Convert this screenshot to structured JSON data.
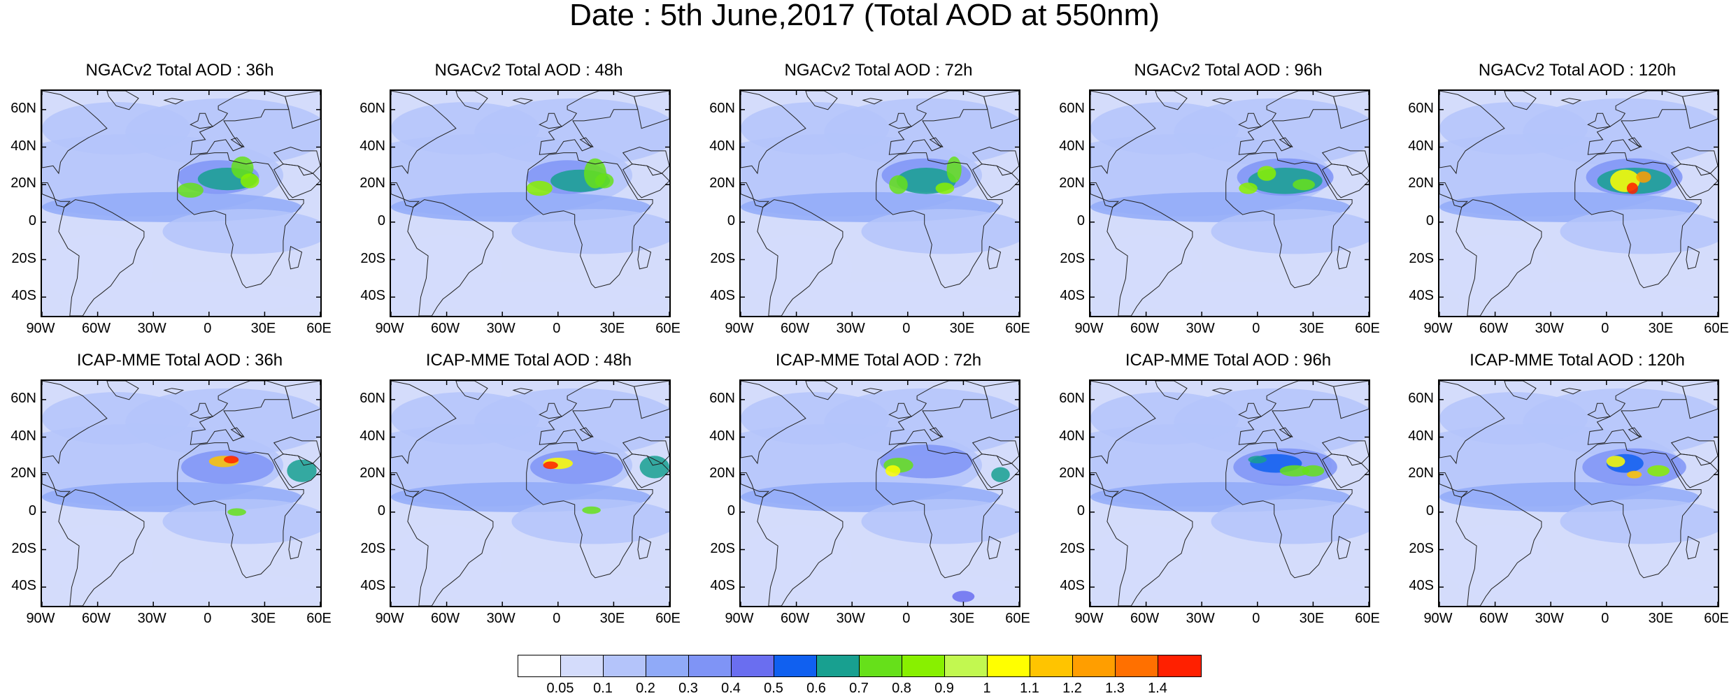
{
  "title": "Date : 5th June,2017 (Total AOD at 550nm)",
  "rows": [
    {
      "panels": [
        {
          "title": "NGACv2 Total AOD : 36h"
        },
        {
          "title": "NGACv2 Total AOD : 48h"
        },
        {
          "title": "NGACv2 Total AOD : 72h"
        },
        {
          "title": "NGACv2 Total AOD : 96h"
        },
        {
          "title": "NGACv2 Total AOD : 120h"
        }
      ]
    },
    {
      "panels": [
        {
          "title": "ICAP-MME Total AOD : 36h"
        },
        {
          "title": "ICAP-MME Total AOD : 48h"
        },
        {
          "title": "ICAP-MME Total AOD : 72h"
        },
        {
          "title": "ICAP-MME Total AOD : 96h"
        },
        {
          "title": "ICAP-MME Total AOD : 120h"
        }
      ]
    }
  ],
  "axes": {
    "lat_labels": [
      "60N",
      "40N",
      "20N",
      "0",
      "20S",
      "40S"
    ],
    "lon_labels": [
      "90W",
      "60W",
      "30W",
      "0",
      "30E",
      "60E"
    ]
  },
  "colorbar": {
    "colors": [
      "#ffffff",
      "#d4dcfb",
      "#b4c4fa",
      "#90aaf8",
      "#7f94f6",
      "#6a6ef0",
      "#1060f0",
      "#18a090",
      "#66e01a",
      "#88f000",
      "#c2f850",
      "#ffff00",
      "#ffc400",
      "#ff9e00",
      "#ff7000",
      "#ff2000"
    ],
    "labels": [
      "0.05",
      "0.1",
      "0.2",
      "0.3",
      "0.4",
      "0.5",
      "0.6",
      "0.7",
      "0.8",
      "0.9",
      "1",
      "1.1",
      "1.2",
      "1.3",
      "1.4"
    ]
  }
}
